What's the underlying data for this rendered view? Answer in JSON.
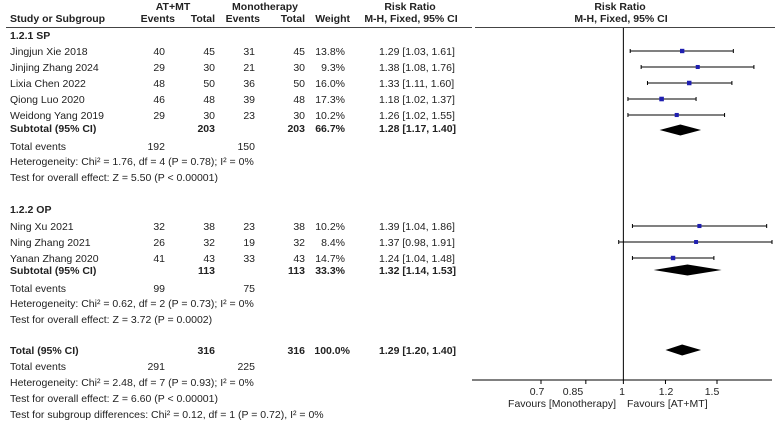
{
  "header": {
    "group1": "AT+MT",
    "group2": "Monotherapy",
    "ratio_top": "Risk Ratio",
    "ratio_top_plot": "Risk Ratio",
    "study_col": "Study or Subgroup",
    "events1": "Events",
    "total1": "Total",
    "events2": "Events",
    "total2": "Total",
    "weight": "Weight",
    "method": "M-H, Fixed, 95% CI",
    "method_plot": "M-H, Fixed, 95% CI"
  },
  "subgroups": [
    {
      "title": "1.2.1 SP",
      "studies": [
        {
          "name": "Jingjun Xie 2018",
          "e1": "40",
          "n1": "45",
          "e2": "31",
          "n2": "45",
          "weight": "13.8%",
          "ci": "1.29 [1.03, 1.61]"
        },
        {
          "name": "Jinjing Zhang 2024",
          "e1": "29",
          "n1": "30",
          "e2": "21",
          "n2": "30",
          "weight": "9.3%",
          "ci": "1.38 [1.08, 1.76]"
        },
        {
          "name": "Lixia Chen 2022",
          "e1": "48",
          "n1": "50",
          "e2": "36",
          "n2": "50",
          "weight": "16.0%",
          "ci": "1.33 [1.11, 1.60]"
        },
        {
          "name": "Qiong Luo 2020",
          "e1": "46",
          "n1": "48",
          "e2": "39",
          "n2": "48",
          "weight": "17.3%",
          "ci": "1.18 [1.02, 1.37]"
        },
        {
          "name": "Weidong Yang 2019",
          "e1": "29",
          "n1": "30",
          "e2": "23",
          "n2": "30",
          "weight": "10.2%",
          "ci": "1.26 [1.02, 1.55]"
        }
      ],
      "subtotal": {
        "label": "Subtotal (95% CI)",
        "n1": "203",
        "n2": "203",
        "weight": "66.7%",
        "ci": "1.28 [1.17, 1.40]"
      },
      "total_events": {
        "label": "Total events",
        "e1": "192",
        "e2": "150"
      },
      "heterogeneity": "Heterogeneity: Chi² = 1.76, df = 4 (P = 0.78); I² = 0%",
      "overall_effect": "Test for overall effect: Z = 5.50 (P < 0.00001)"
    },
    {
      "title": "1.2.2 OP",
      "studies": [
        {
          "name": "Ning Xu 2021",
          "e1": "32",
          "n1": "38",
          "e2": "23",
          "n2": "38",
          "weight": "10.2%",
          "ci": "1.39 [1.04, 1.86]"
        },
        {
          "name": "Ning Zhang 2021",
          "e1": "26",
          "n1": "32",
          "e2": "19",
          "n2": "32",
          "weight": "8.4%",
          "ci": "1.37 [0.98, 1.91]"
        },
        {
          "name": "Yanan Zhang 2020",
          "e1": "41",
          "n1": "43",
          "e2": "33",
          "n2": "43",
          "weight": "14.7%",
          "ci": "1.24 [1.04, 1.48]"
        }
      ],
      "subtotal": {
        "label": "Subtotal (95% CI)",
        "n1": "113",
        "n2": "113",
        "weight": "33.3%",
        "ci": "1.32 [1.14, 1.53]"
      },
      "total_events": {
        "label": "Total events",
        "e1": "99",
        "e2": "75"
      },
      "heterogeneity": "Heterogeneity: Chi² = 0.62, df = 2 (P = 0.73); I² = 0%",
      "overall_effect": "Test for overall effect: Z = 3.72 (P = 0.0002)"
    }
  ],
  "total": {
    "label": "Total (95% CI)",
    "n1": "316",
    "n2": "316",
    "weight": "100.0%",
    "ci": "1.29 [1.20, 1.40]",
    "events_label": "Total events",
    "e1": "291",
    "e2": "225",
    "heterogeneity": "Heterogeneity: Chi² = 2.48, df = 7 (P = 0.93); I² = 0%",
    "overall_effect": "Test for overall effect: Z = 6.60 (P < 0.00001)",
    "subgroup_diff": "Test for subgroup differences: Chi² = 0.12, df = 1 (P = 0.72), I² = 0%"
  },
  "axis": {
    "ticks": [
      "0.7",
      "0.85",
      "1",
      "1.2",
      "1.5"
    ],
    "favours_left": "Favours [Monotherapy]",
    "favours_right": "Favours [AT+MT]"
  },
  "colors": {
    "marker": "#1f1fb0",
    "line": "#000000",
    "diamond": "#000000"
  },
  "chart_data": {
    "type": "forest",
    "scale": "log",
    "xlim": [
      0.7,
      1.5
    ],
    "null_value": 1,
    "ticks": [
      0.7,
      0.85,
      1,
      1.2,
      1.5
    ],
    "studies": [
      {
        "name": "Jingjun Xie 2018",
        "rr": 1.29,
        "lo": 1.03,
        "hi": 1.61,
        "weight": 13.8
      },
      {
        "name": "Jinjing Zhang 2024",
        "rr": 1.38,
        "lo": 1.08,
        "hi": 1.76,
        "weight": 9.3
      },
      {
        "name": "Lixia Chen 2022",
        "rr": 1.33,
        "lo": 1.11,
        "hi": 1.6,
        "weight": 16.0
      },
      {
        "name": "Qiong Luo 2020",
        "rr": 1.18,
        "lo": 1.02,
        "hi": 1.37,
        "weight": 17.3
      },
      {
        "name": "Weidong Yang 2019",
        "rr": 1.26,
        "lo": 1.02,
        "hi": 1.55,
        "weight": 10.2
      },
      {
        "name": "Ning Xu 2021",
        "rr": 1.39,
        "lo": 1.04,
        "hi": 1.86,
        "weight": 10.2
      },
      {
        "name": "Ning Zhang 2021",
        "rr": 1.37,
        "lo": 0.98,
        "hi": 1.91,
        "weight": 8.4
      },
      {
        "name": "Yanan Zhang 2020",
        "rr": 1.24,
        "lo": 1.04,
        "hi": 1.48,
        "weight": 14.7
      }
    ],
    "pooled": [
      {
        "name": "Subtotal 1.2.1 SP",
        "rr": 1.28,
        "lo": 1.17,
        "hi": 1.4
      },
      {
        "name": "Subtotal 1.2.2 OP",
        "rr": 1.32,
        "lo": 1.14,
        "hi": 1.53
      },
      {
        "name": "Total",
        "rr": 1.29,
        "lo": 1.2,
        "hi": 1.4
      }
    ]
  }
}
